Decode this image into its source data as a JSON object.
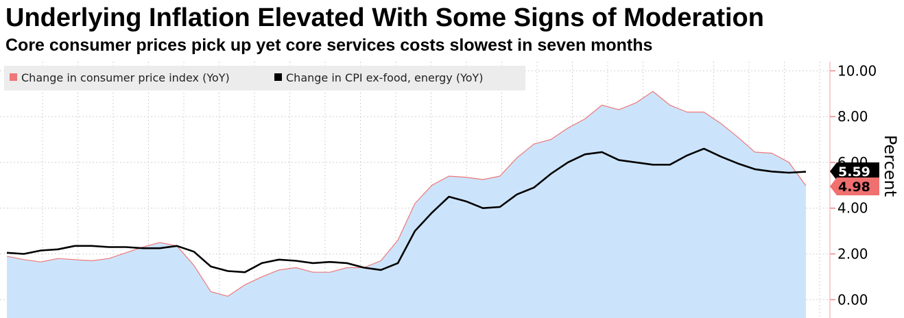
{
  "chart_data": {
    "type": "area",
    "title": "Underlying Inflation Elevated With Some Signs of Moderation",
    "subtitle": "Core consumer prices pick up yet core services costs slowest in seven months",
    "ylabel": "Percent",
    "ylim": [
      -0.8,
      10.4
    ],
    "y_ticks": [
      "10.00",
      "8.00",
      "6.00",
      "4.00",
      "2.00",
      "0.00"
    ],
    "y_tick_values": [
      10,
      8,
      6,
      4,
      2,
      0
    ],
    "grid": true,
    "legend_position": "top-left",
    "series": [
      {
        "name": "Change in consumer price index (YoY)",
        "color": "#ee7777",
        "fill": "#cce4fb",
        "values": [
          1.9,
          1.75,
          1.65,
          1.8,
          1.75,
          1.7,
          1.8,
          2.05,
          2.3,
          2.5,
          2.35,
          1.5,
          0.35,
          0.15,
          0.65,
          1.0,
          1.3,
          1.4,
          1.2,
          1.2,
          1.4,
          1.4,
          1.7,
          2.6,
          4.2,
          5.0,
          5.4,
          5.35,
          5.25,
          5.4,
          6.2,
          6.8,
          7.0,
          7.5,
          7.9,
          8.5,
          8.3,
          8.6,
          9.1,
          8.5,
          8.2,
          8.2,
          7.7,
          7.1,
          6.45,
          6.4,
          6.0,
          4.98
        ],
        "last_value_label": "4.98"
      },
      {
        "name": "Change in CPI ex-food, energy (YoY)",
        "color": "#000000",
        "values": [
          2.05,
          2.0,
          2.15,
          2.2,
          2.35,
          2.35,
          2.3,
          2.3,
          2.25,
          2.25,
          2.35,
          2.1,
          1.45,
          1.25,
          1.2,
          1.6,
          1.75,
          1.7,
          1.6,
          1.65,
          1.6,
          1.4,
          1.3,
          1.6,
          3.0,
          3.8,
          4.5,
          4.3,
          4.0,
          4.05,
          4.6,
          4.9,
          5.5,
          6.0,
          6.35,
          6.45,
          6.1,
          6.0,
          5.9,
          5.9,
          6.3,
          6.6,
          6.25,
          5.95,
          5.7,
          5.6,
          5.55,
          5.59
        ],
        "last_value_label": "5.59"
      }
    ]
  }
}
